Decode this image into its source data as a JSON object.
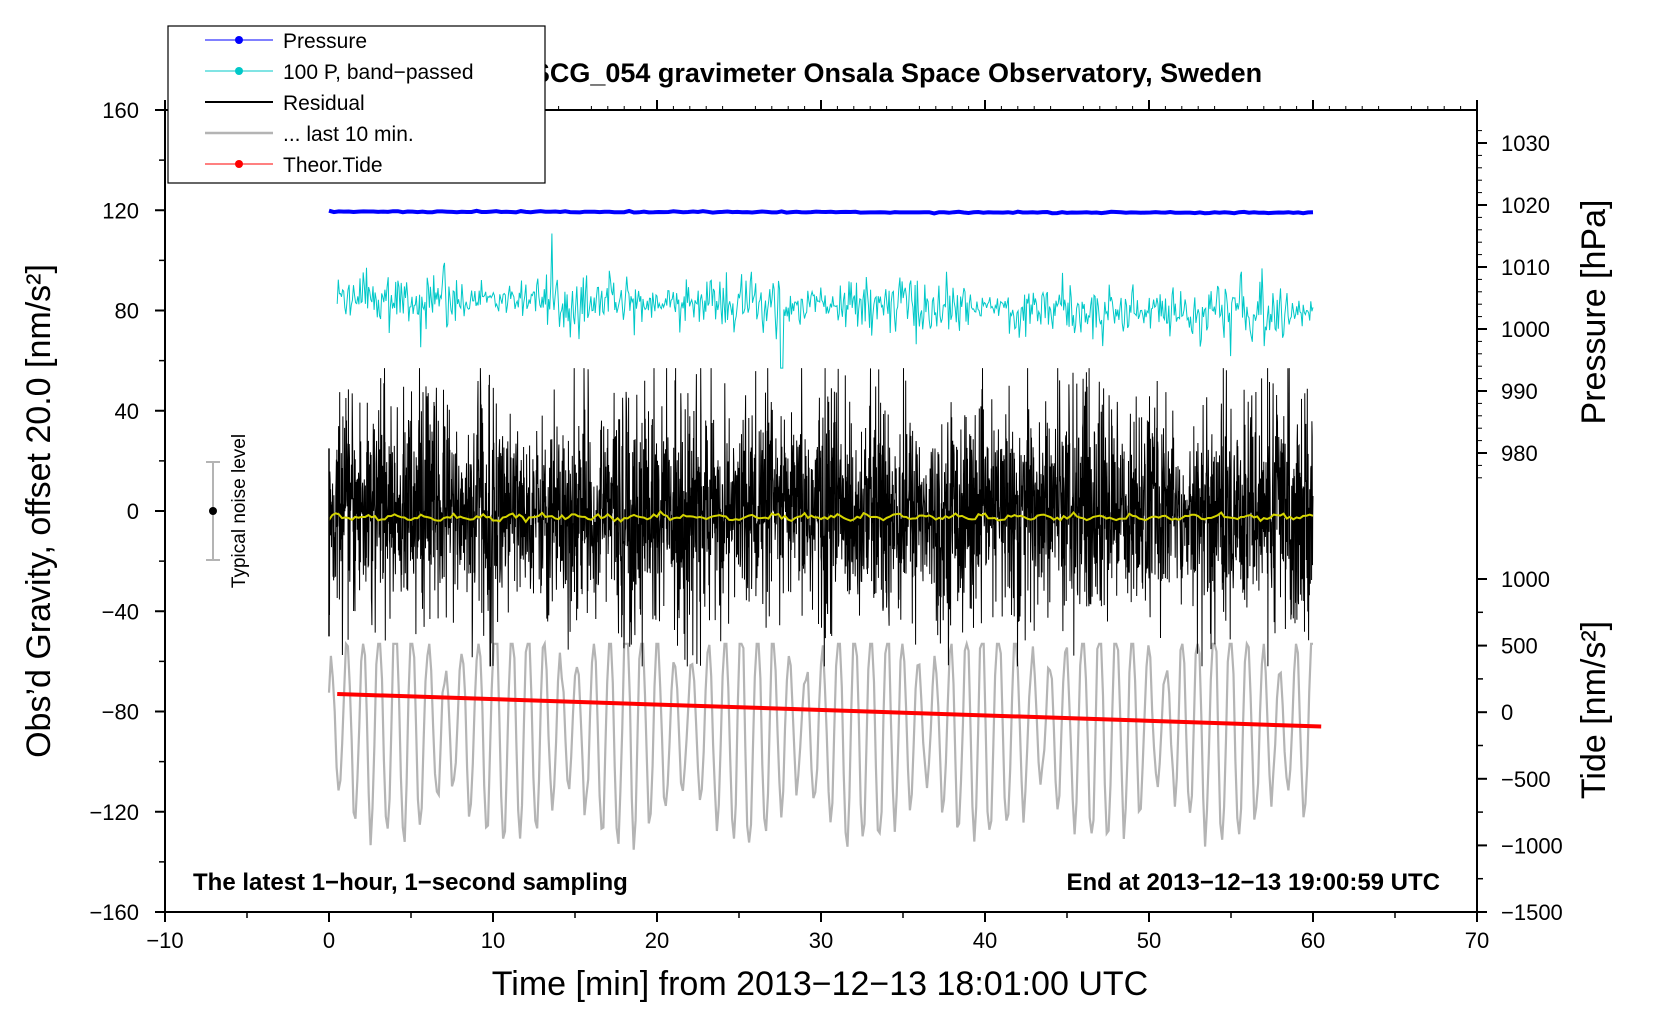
{
  "chart_data": {
    "type": "line",
    "title": "SCG_054 gravimeter Onsala Space Observatory, Sweden",
    "xlabel": "Time [min] from 2013−12−13 18:01:00 UTC",
    "ylabel_left": "Obs’d Gravity, offset 20.0 [nm/s²]",
    "ylabel_right_top": "Pressure [hPa]",
    "ylabel_right_bottom": "Tide [nm/s²]",
    "xlim": [
      -10,
      70
    ],
    "ylim": [
      -160,
      160
    ],
    "pressure_lim": [
      975,
      1032
    ],
    "tide_lim": [
      -1500,
      1000
    ],
    "x_ticks": [
      "−10",
      "0",
      "10",
      "20",
      "30",
      "40",
      "50",
      "60",
      "70"
    ],
    "y_ticks": [
      "−160",
      "−120",
      "−80",
      "−40",
      "0",
      "40",
      "80",
      "120",
      "160"
    ],
    "pressure_ticks": [
      "980",
      "990",
      "1000",
      "1010",
      "1020",
      "1030"
    ],
    "tide_ticks": [
      "−1500",
      "−1000",
      "−500",
      "0",
      "500",
      "1000"
    ],
    "legend": [
      {
        "label": "Pressure",
        "color": "#0000ff",
        "marker": true
      },
      {
        "label": "100 P, band−passed",
        "color": "#00c8c8",
        "marker": true
      },
      {
        "label": "Residual",
        "color": "#000000",
        "marker": false
      },
      {
        "label": "... last 10 min.",
        "color": "#b4b4b4",
        "marker": false
      },
      {
        "label": "Theor.Tide",
        "color": "#ff0000",
        "marker": true
      }
    ],
    "series": [
      {
        "name": "Pressure",
        "color": "#0000ff",
        "x": [
          0,
          60
        ],
        "y": [
          119.5,
          119
        ]
      },
      {
        "name": "100 P, band−passed",
        "color": "#00c8c8",
        "x": [
          0,
          60
        ],
        "y": [
          85,
          79
        ]
      },
      {
        "name": "Residual",
        "color": "#000000",
        "x": [
          0,
          60
        ],
        "y": [
          0,
          0
        ],
        "range": [
          -62,
          57
        ]
      },
      {
        "name": "... last 10 min.",
        "color": "#b4b4b4",
        "x": [
          0,
          60
        ],
        "y": [
          -85,
          -85
        ],
        "range": [
          -145,
          -53
        ]
      },
      {
        "name": "Theor.Tide",
        "color": "#ff0000",
        "x": [
          0.5,
          60.5
        ],
        "y": [
          -73,
          -86
        ]
      }
    ],
    "noise_bar": {
      "label": "Typical noise level",
      "x": -7,
      "y": 0,
      "low": -20,
      "high": 20
    },
    "notes": {
      "left": "The latest 1−hour, 1−second sampling",
      "right": "End at 2013−12−13 19:00:59 UTC"
    },
    "colors": {
      "pressure": "#0000ff",
      "bandpassed": "#00c8c8",
      "residual": "#000000",
      "last10": "#b4b4b4",
      "tide": "#ff0000",
      "mean": "#d4d400"
    }
  }
}
